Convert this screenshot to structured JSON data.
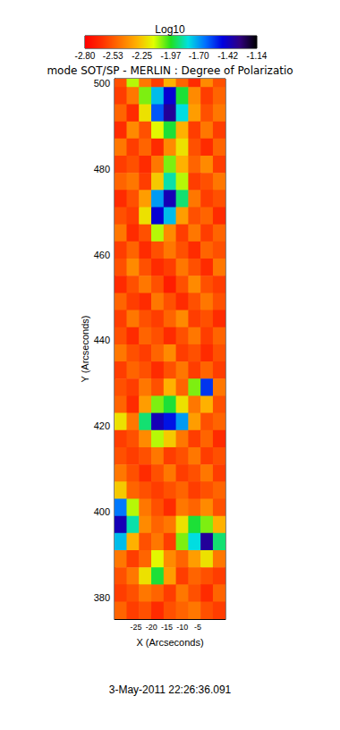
{
  "chart_data": {
    "type": "heatmap",
    "title": "mode SOT/SP - MERLIN : Degree of Polarizatio",
    "subtitle": "3-May-2011 22:26:36.091",
    "x_label": "X (Arcseconds)",
    "y_label": "Y (Arcseconds)",
    "xlim": [
      -32,
      4
    ],
    "xticks": [
      -25,
      -20,
      -15,
      -10,
      -5
    ],
    "ylim": [
      375,
      501
    ],
    "yticks": [
      380,
      400,
      420,
      440,
      460,
      480,
      500
    ],
    "x": [
      -30,
      -26,
      -22,
      -18,
      -14,
      -10,
      -6,
      -2,
      2
    ],
    "y": [
      501,
      497,
      493,
      489,
      485,
      481,
      477,
      473,
      469,
      465,
      461,
      457,
      453,
      449,
      445,
      441,
      437,
      433,
      429,
      425,
      421,
      417,
      413,
      409,
      405,
      401,
      397,
      393,
      389,
      385,
      381,
      377
    ],
    "values": [
      [
        -2.55,
        -2.1,
        -2.45,
        -2.6,
        -2.3,
        -2.5,
        -2.65,
        -2.4,
        -2.55
      ],
      [
        -2.6,
        -2.45,
        -2.05,
        -1.75,
        -1.45,
        -1.95,
        -2.4,
        -2.6,
        -2.5
      ],
      [
        -2.5,
        -2.65,
        -2.2,
        -1.6,
        -1.35,
        -1.8,
        -2.35,
        -2.55,
        -2.45
      ],
      [
        -2.65,
        -2.4,
        -2.55,
        -2.15,
        -1.95,
        -2.3,
        -2.6,
        -2.45,
        -2.6
      ],
      [
        -2.45,
        -2.6,
        -2.5,
        -2.65,
        -2.4,
        -2.2,
        -2.55,
        -2.65,
        -2.5
      ],
      [
        -2.6,
        -2.55,
        -2.65,
        -2.45,
        -2.05,
        -2.3,
        -2.5,
        -2.4,
        -2.6
      ],
      [
        -2.5,
        -2.45,
        -2.6,
        -2.25,
        -1.85,
        -2.1,
        -2.6,
        -2.55,
        -2.45
      ],
      [
        -2.65,
        -2.55,
        -2.35,
        -1.7,
        -1.4,
        -1.9,
        -2.45,
        -2.6,
        -2.55
      ],
      [
        -2.55,
        -2.6,
        -2.2,
        -1.45,
        -1.75,
        -2.35,
        -2.55,
        -2.5,
        -2.65
      ],
      [
        -2.45,
        -2.65,
        -2.55,
        -2.1,
        -2.4,
        -2.6,
        -2.45,
        -2.6,
        -2.5
      ],
      [
        -2.6,
        -2.5,
        -2.65,
        -2.55,
        -2.45,
        -2.55,
        -2.65,
        -2.5,
        -2.55
      ],
      [
        -2.55,
        -2.4,
        -2.55,
        -2.65,
        -2.6,
        -2.45,
        -2.55,
        -2.65,
        -2.45
      ],
      [
        -2.65,
        -2.55,
        -2.45,
        -2.55,
        -2.7,
        -2.55,
        -2.4,
        -2.55,
        -2.6
      ],
      [
        -2.5,
        -2.6,
        -2.65,
        -2.45,
        -2.55,
        -2.65,
        -2.55,
        -2.45,
        -2.55
      ],
      [
        -2.6,
        -2.45,
        -2.55,
        -2.6,
        -2.5,
        -2.4,
        -2.6,
        -2.55,
        -2.65
      ],
      [
        -2.55,
        -2.65,
        -2.5,
        -2.55,
        -2.65,
        -2.55,
        -2.45,
        -2.6,
        -2.5
      ],
      [
        -2.45,
        -2.55,
        -2.6,
        -2.5,
        -2.4,
        -2.6,
        -2.55,
        -2.65,
        -2.55
      ],
      [
        -2.6,
        -2.5,
        -2.55,
        -2.65,
        -2.55,
        -2.45,
        -2.6,
        -2.5,
        -2.6
      ],
      [
        -2.55,
        -2.6,
        -2.45,
        -2.55,
        -2.3,
        -2.5,
        -2.05,
        -1.55,
        -2.45
      ],
      [
        -2.5,
        -2.65,
        -2.35,
        -2.05,
        -1.95,
        -2.2,
        -2.45,
        -2.3,
        -2.55
      ],
      [
        -2.2,
        -2.45,
        -1.9,
        -1.4,
        -1.5,
        -1.7,
        -2.35,
        -2.55,
        -2.5
      ],
      [
        -2.6,
        -2.55,
        -2.4,
        -2.1,
        -2.25,
        -2.45,
        -2.6,
        -2.5,
        -2.65
      ],
      [
        -2.55,
        -2.6,
        -2.55,
        -2.45,
        -2.6,
        -2.55,
        -2.45,
        -2.6,
        -2.55
      ],
      [
        -2.45,
        -2.55,
        -2.65,
        -2.55,
        -2.45,
        -2.6,
        -2.55,
        -2.45,
        -2.6
      ],
      [
        -2.25,
        -2.5,
        -2.55,
        -2.6,
        -2.55,
        -2.5,
        -2.6,
        -2.55,
        -2.5
      ],
      [
        -1.65,
        -2.1,
        -2.45,
        -2.55,
        -2.65,
        -2.45,
        -2.5,
        -2.4,
        -2.55
      ],
      [
        -1.4,
        -1.85,
        -2.4,
        -2.5,
        -2.45,
        -2.2,
        -1.95,
        -2.05,
        -2.3
      ],
      [
        -1.75,
        -2.3,
        -2.55,
        -2.45,
        -2.6,
        -2.05,
        -1.8,
        -1.35,
        -1.9
      ],
      [
        -2.45,
        -2.6,
        -2.5,
        -2.15,
        -2.4,
        -2.5,
        -2.35,
        -2.2,
        -2.45
      ],
      [
        -2.55,
        -2.45,
        -2.2,
        -1.95,
        -2.35,
        -2.6,
        -2.5,
        -2.55,
        -2.6
      ],
      [
        -2.6,
        -2.55,
        -2.45,
        -2.5,
        -2.6,
        -2.45,
        -2.55,
        -2.65,
        -2.5
      ],
      [
        -2.5,
        -2.6,
        -2.55,
        -2.65,
        -2.55,
        -2.5,
        -2.45,
        -2.55,
        -2.6
      ]
    ],
    "colorbar": {
      "title": "Log10",
      "range": [
        -2.8,
        -1.14
      ],
      "ticks": [
        {
          "value": -2.8,
          "label": "-2.80"
        },
        -2.53,
        -2.25,
        -1.97,
        {
          "value": -1.7,
          "label": "-1.70"
        },
        -1.42,
        -1.14
      ]
    }
  }
}
